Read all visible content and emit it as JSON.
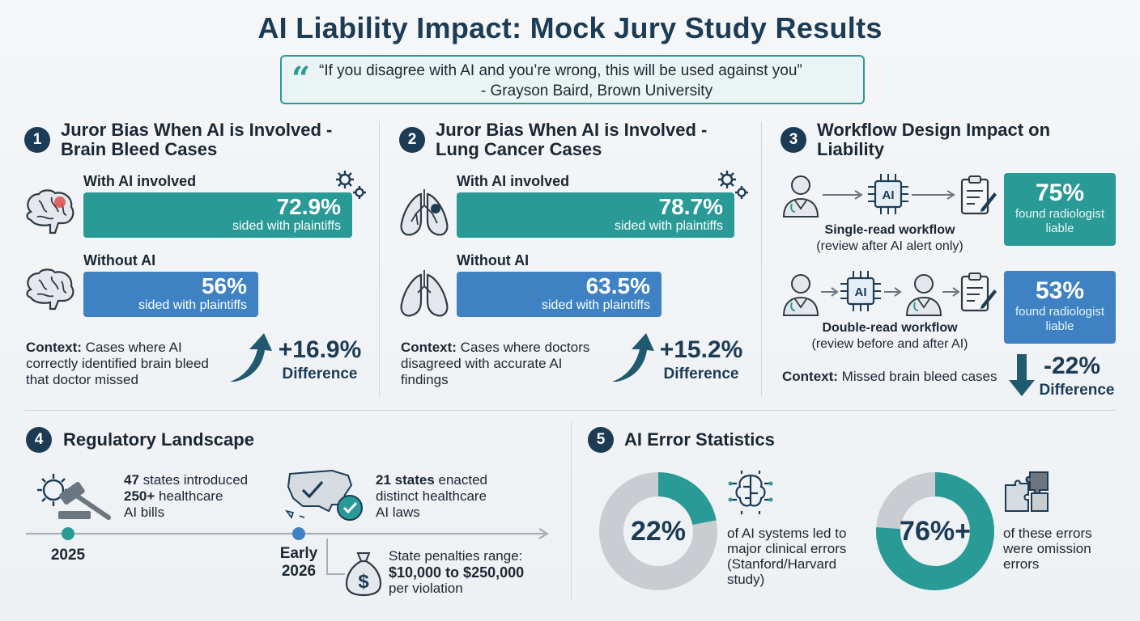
{
  "title": "AI Liability Impact: Mock Jury Study Results",
  "quote": {
    "text": "“If you disagree with AI and you’re wrong, this will be used against you”",
    "author": "- Grayson Baird, Brown University"
  },
  "section1": {
    "number": "1",
    "title_line1": "Juror Bias When AI is Involved -",
    "title_line2": "Brain Bleed Cases",
    "with_label": "With AI involved",
    "with_value": "72.9%",
    "with_sub": "sided with plaintiffs",
    "without_label": "Without AI",
    "without_value": "56%",
    "without_sub": "sided with plaintiffs",
    "context_label": "Context:",
    "context_text": " Cases where AI correctly identified brain bleed that doctor missed",
    "diff_value": "+16.9%",
    "diff_label": "Difference"
  },
  "section2": {
    "number": "2",
    "title_line1": "Juror Bias When AI is Involved -",
    "title_line2": "Lung Cancer Cases",
    "with_label": "With AI involved",
    "with_value": "78.7%",
    "with_sub": "sided with plaintiffs",
    "without_label": "Without AI",
    "without_value": "63.5%",
    "without_sub": "sided with plaintiffs",
    "context_label": "Context:",
    "context_text": " Cases where doctors disagreed with accurate AI findings",
    "diff_value": "+15.2%",
    "diff_label": "Difference"
  },
  "section3": {
    "number": "3",
    "title_line1": "Workflow Design Impact on",
    "title_line2": "Liability",
    "ai_chip": "AI",
    "single_title": "Single-read workflow",
    "single_sub": "(review after AI alert only)",
    "single_value": "75%",
    "single_box_sub": "found radiologist liable",
    "double_title": "Double-read workflow",
    "double_sub": "(review before and after AI)",
    "double_value": "53%",
    "double_box_sub": "found radiologist liable",
    "context_label": "Context:",
    "context_text": " Missed brain bleed cases",
    "diff_value": "-22%",
    "diff_label": "Difference"
  },
  "section4": {
    "number": "4",
    "title": "Regulatory Landscape",
    "item1_b1": "47",
    "item1_t1": " states introduced",
    "item1_b2": "250+",
    "item1_t2": " healthcare",
    "item1_t3": "AI bills",
    "year1": "2025",
    "item2_b1": "21 states",
    "item2_t1": " enacted",
    "item2_t2": "distinct healthcare",
    "item2_t3": "AI laws",
    "year2_line1": "Early",
    "year2_line2": "2026",
    "penalty_line1": "State penalties range:",
    "penalty_bold": "$10,000 to $250,000",
    "penalty_line3": "per violation"
  },
  "section5": {
    "number": "5",
    "title": "AI Error Statistics",
    "donut1_value": "22%",
    "donut1_fraction": 0.22,
    "donut1_text": "of AI systems led to major clinical errors (Stanford/Harvard study)",
    "donut2_value": "76%+",
    "donut2_fraction": 0.76,
    "donut2_text": "of these errors were omission errors"
  },
  "colors": {
    "teal": "#2a9a96",
    "blue": "#3f82c4",
    "navy": "#1c3b55",
    "gray": "#c9ccd0"
  }
}
